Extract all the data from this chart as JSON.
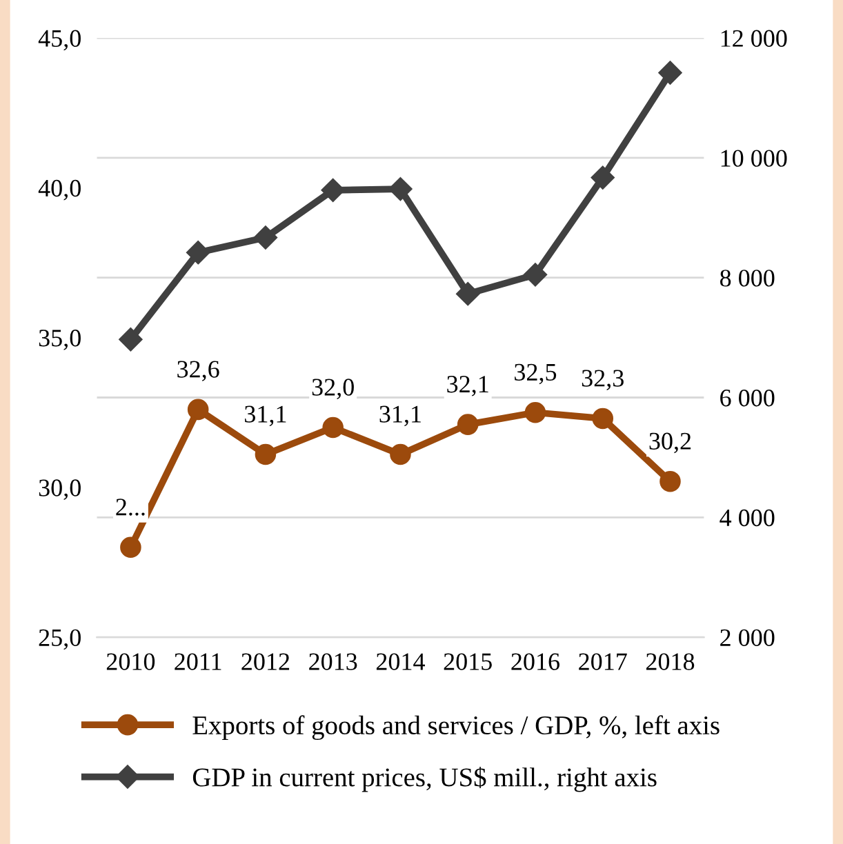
{
  "chart_data": {
    "type": "line",
    "categories": [
      "2010",
      "2011",
      "2012",
      "2013",
      "2014",
      "2015",
      "2016",
      "2017",
      "2018"
    ],
    "series": [
      {
        "name": "Exports of goods and services / GDP, %, left axis",
        "color": "#9c4a0c",
        "values": [
          28.0,
          32.6,
          31.1,
          32.0,
          31.1,
          32.1,
          32.5,
          32.3,
          30.2
        ],
        "marker": "circle",
        "value_labels": [
          "2...",
          "32,6",
          "31,1",
          "32,0",
          "31,1",
          "32,1",
          "32,5",
          "32,3",
          "30,2"
        ]
      },
      {
        "name": "GDP in current prices, US$ mill., right axis",
        "color": "#404040",
        "values": [
          6970,
          8420,
          8670,
          9460,
          9480,
          7730,
          8050,
          9670,
          11420
        ],
        "marker": "diamond",
        "axis": "y2"
      }
    ],
    "ylim": [
      25,
      45
    ],
    "yticks": [
      {
        "value": 25,
        "label": "25,0"
      },
      {
        "value": 30,
        "label": "30,0"
      },
      {
        "value": 35,
        "label": "35,0"
      },
      {
        "value": 40,
        "label": "40,0"
      },
      {
        "value": 45,
        "label": "45,0"
      }
    ],
    "y2lim": [
      2000,
      12000
    ],
    "y2ticks": [
      {
        "value": 2000,
        "label": "2 000"
      },
      {
        "value": 4000,
        "label": "4 000"
      },
      {
        "value": 6000,
        "label": "6 000"
      },
      {
        "value": 8000,
        "label": "8 000"
      },
      {
        "value": 10000,
        "label": "10 000"
      },
      {
        "value": 12000,
        "label": "12 000"
      }
    ],
    "grid": "y",
    "legend": "bottom",
    "line_style": "solid"
  }
}
